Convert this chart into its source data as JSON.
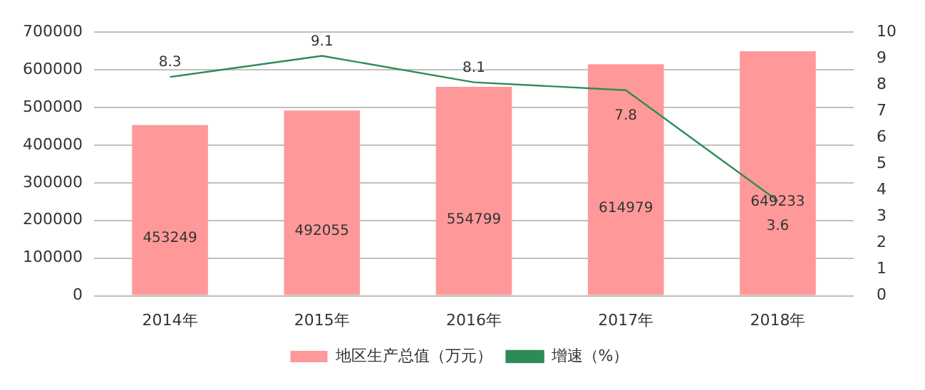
{
  "chart_data": {
    "type": "bar",
    "categories": [
      "2014年",
      "2015年",
      "2016年",
      "2017年",
      "2018年"
    ],
    "series": [
      {
        "name": "地区生产总值（万元）",
        "color": "#ff9999",
        "values": [
          453249,
          492055,
          554799,
          614979,
          649233
        ]
      },
      {
        "name": "增速（%）",
        "type": "line",
        "axis": "y2",
        "color": "#2e8b57",
        "values": [
          8.3,
          9.1,
          8.1,
          7.8,
          3.6
        ]
      }
    ],
    "ylim": [
      0,
      700000
    ],
    "yticks": [
      0,
      100000,
      200000,
      300000,
      400000,
      500000,
      600000,
      700000
    ],
    "y2lim": [
      0,
      10
    ],
    "y2ticks": [
      0,
      1,
      2,
      3,
      4,
      5,
      6,
      7,
      8,
      9,
      10
    ],
    "grid": "y",
    "legend": "bottom",
    "data_labels": true,
    "marker": "none"
  }
}
